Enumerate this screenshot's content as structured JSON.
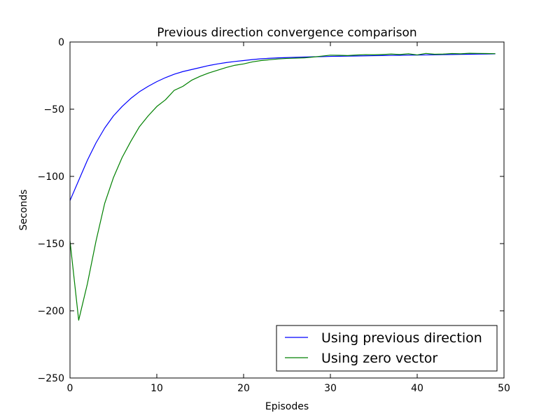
{
  "chart_data": {
    "type": "line",
    "title": "Previous direction convergence comparison",
    "xlabel": "Episodes",
    "ylabel": "Seconds",
    "xlim": [
      0,
      50
    ],
    "ylim": [
      -250,
      0
    ],
    "xticks": [
      0,
      10,
      20,
      30,
      40,
      50
    ],
    "yticks": [
      0,
      -50,
      -100,
      -150,
      -200,
      -250
    ],
    "xtick_labels": [
      "0",
      "10",
      "20",
      "30",
      "40",
      "50"
    ],
    "ytick_labels": [
      "0",
      "−50",
      "−100",
      "−150",
      "−200",
      "−250"
    ],
    "grid": false,
    "legend_position": "lower-right",
    "x": [
      0,
      1,
      2,
      3,
      4,
      5,
      6,
      7,
      8,
      9,
      10,
      11,
      12,
      13,
      14,
      15,
      16,
      17,
      18,
      19,
      20,
      21,
      22,
      23,
      24,
      25,
      26,
      27,
      28,
      29,
      30,
      31,
      32,
      33,
      34,
      35,
      36,
      37,
      38,
      39,
      40,
      41,
      42,
      43,
      44,
      45,
      46,
      47,
      48,
      49
    ],
    "series": [
      {
        "name": "Using previous direction",
        "color": "#0000ff",
        "values": [
          -118,
          -103,
          -88,
          -75,
          -64,
          -55,
          -48,
          -42,
          -37,
          -33,
          -29.5,
          -26.5,
          -24,
          -22,
          -20.5,
          -19,
          -17.5,
          -16.3,
          -15.3,
          -14.5,
          -13.8,
          -13.1,
          -12.5,
          -12.1,
          -11.8,
          -11.6,
          -11.4,
          -11.2,
          -11,
          -10.9,
          -10.7,
          -10.6,
          -10.5,
          -10.4,
          -10.3,
          -10.2,
          -10.1,
          -10,
          -9.9,
          -9.8,
          -9.7,
          -9.6,
          -9.5,
          -9.4,
          -9.3,
          -9.2,
          -9.1,
          -9,
          -8.9,
          -8.8
        ]
      },
      {
        "name": "Using zero vector",
        "color": "#008000",
        "values": [
          -148,
          -207,
          -180,
          -148,
          -120,
          -101,
          -86,
          -74,
          -63,
          -55,
          -48,
          -43,
          -36,
          -33,
          -28.5,
          -25.5,
          -23,
          -21,
          -19,
          -17.3,
          -16.3,
          -14.8,
          -13.8,
          -13.2,
          -12.6,
          -12.2,
          -12,
          -11.8,
          -11.2,
          -10.5,
          -9.8,
          -9.9,
          -10.1,
          -9.7,
          -9.4,
          -9.5,
          -9.3,
          -9,
          -9.3,
          -8.8,
          -9.6,
          -8.5,
          -9.1,
          -9,
          -8.6,
          -8.8,
          -8.4,
          -8.5,
          -8.6,
          -8.7
        ]
      }
    ]
  }
}
